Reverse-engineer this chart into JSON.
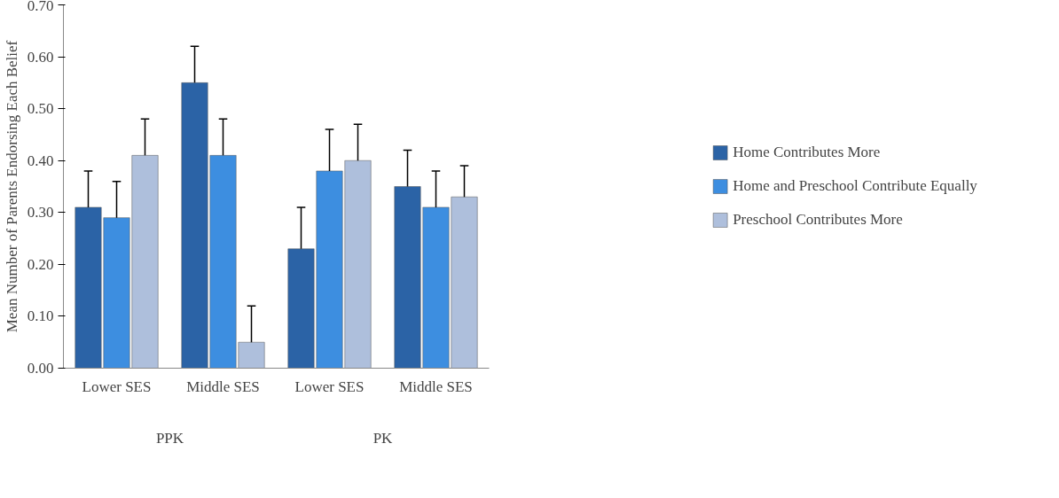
{
  "chart_data": {
    "type": "bar",
    "ylabel": "Mean Number of Parents Endorsing Each Belief",
    "categories": [
      "Lower SES",
      "Middle SES",
      "Lower SES",
      "Middle SES"
    ],
    "annotations": [
      "PPK",
      "PK"
    ],
    "series": [
      {
        "name": "Home Contributes More",
        "color": "#2b63a6",
        "values": [
          0.31,
          0.55,
          0.23,
          0.35
        ],
        "errors": [
          [
            0.31,
            0.38
          ],
          [
            0.55,
            0.62
          ],
          [
            0.23,
            0.31
          ],
          [
            0.35,
            0.42
          ]
        ]
      },
      {
        "name": "Home and Preschool Contribute Equally",
        "color": "#3d8ee0",
        "values": [
          0.29,
          0.41,
          0.38,
          0.31
        ],
        "errors": [
          [
            0.29,
            0.36
          ],
          [
            0.41,
            0.48
          ],
          [
            0.38,
            0.46
          ],
          [
            0.31,
            0.38
          ]
        ]
      },
      {
        "name": "Preschool Contributes More",
        "color": "#aebfdc",
        "values": [
          0.41,
          0.05,
          0.4,
          0.33
        ],
        "errors": [
          [
            0.41,
            0.48
          ],
          [
            0.05,
            0.12
          ],
          [
            0.4,
            0.47
          ],
          [
            0.33,
            0.39
          ]
        ]
      }
    ],
    "ylim": [
      0,
      0.7
    ],
    "yticks": [
      {
        "value": 0,
        "label": "0.00"
      },
      {
        "value": 0.1,
        "label": "0.10"
      },
      {
        "value": 0.2,
        "label": "0.20"
      },
      {
        "value": 0.3,
        "label": "0.30"
      },
      {
        "value": 0.4,
        "label": "0.40"
      },
      {
        "value": 0.5,
        "label": "0.50"
      },
      {
        "value": 0.6,
        "label": "0.60"
      },
      {
        "value": 0.7,
        "label": "0.70"
      }
    ],
    "grid": false,
    "legend": "right"
  }
}
